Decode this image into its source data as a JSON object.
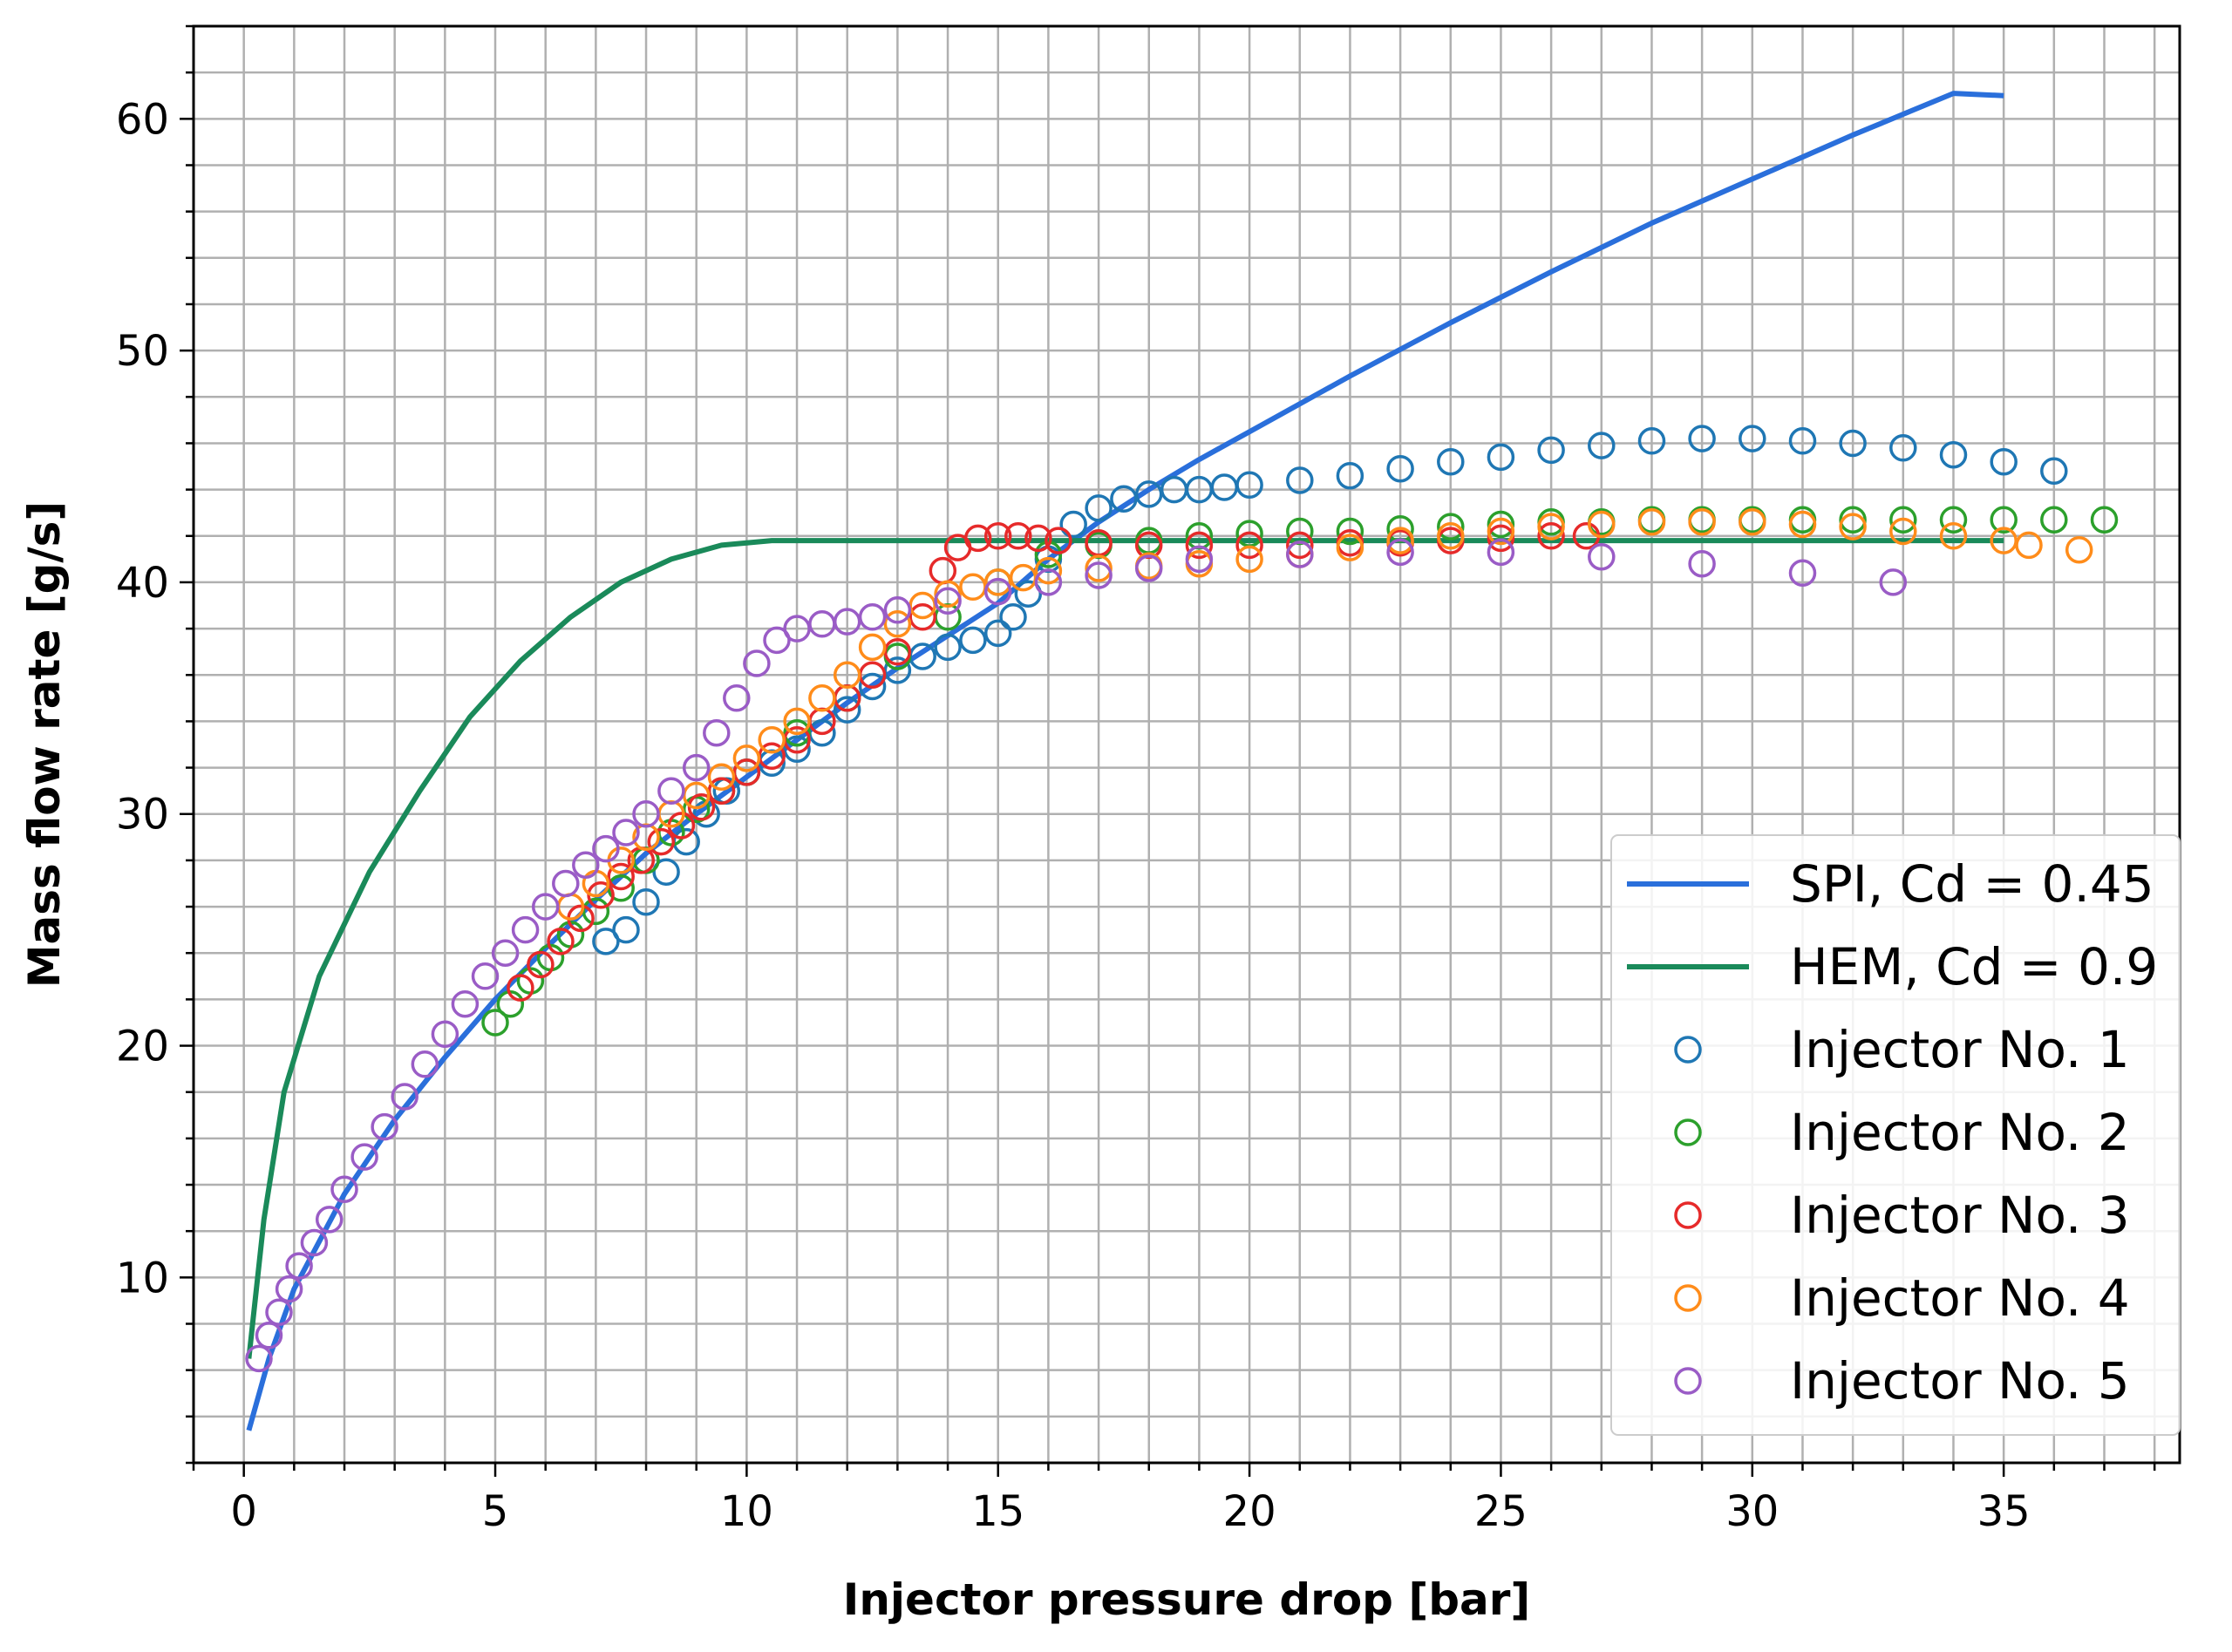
{
  "chart_data": {
    "type": "scatter",
    "title": "",
    "xlabel": "Injector pressure drop [bar]",
    "ylabel": "Mass flow rate [g/s]",
    "xlim": [
      -1.0,
      38.5
    ],
    "ylim": [
      2.0,
      64.0
    ],
    "xticks": [
      0,
      5,
      10,
      15,
      20,
      25,
      30,
      35
    ],
    "yticks": [
      10,
      20,
      30,
      40,
      50,
      60
    ],
    "grid": true,
    "legend_position": "lower-right",
    "series": [
      {
        "name": "SPI, Cd = 0.45",
        "kind": "line",
        "color": "#2a6fdb",
        "x": [
          0.1,
          0.5,
          1,
          2,
          3,
          4,
          5,
          6,
          7,
          8,
          9,
          10,
          11,
          12,
          13,
          14,
          15,
          16,
          17,
          18,
          19,
          20,
          22,
          24,
          26,
          28,
          30,
          32,
          34,
          35
        ],
        "y": [
          3.4,
          6.5,
          9.5,
          13.6,
          16.8,
          19.5,
          22.0,
          24.2,
          26.3,
          28.3,
          30.0,
          31.6,
          33.2,
          34.8,
          36.3,
          37.7,
          39.1,
          41.0,
          42.6,
          44.0,
          45.3,
          46.5,
          48.9,
          51.2,
          53.4,
          55.5,
          57.4,
          59.3,
          61.1,
          61.0
        ]
      },
      {
        "name": "HEM, Cd = 0.9",
        "kind": "line",
        "color": "#1a8a5a",
        "x": [
          0.1,
          0.4,
          0.8,
          1.5,
          2.5,
          3.5,
          4.5,
          5.5,
          6.5,
          7.5,
          8.5,
          9.5,
          10.5,
          11.5,
          13,
          15,
          20,
          25,
          30,
          35
        ],
        "y": [
          6.5,
          12.5,
          18.0,
          23.0,
          27.5,
          31.0,
          34.2,
          36.6,
          38.5,
          40.0,
          41.0,
          41.6,
          41.8,
          41.8,
          41.8,
          41.8,
          41.8,
          41.8,
          41.8,
          41.8
        ]
      },
      {
        "name": "Injector No. 1",
        "kind": "scatter",
        "color": "#1f77b4",
        "x": [
          7.2,
          7.6,
          8.0,
          8.4,
          8.8,
          9.2,
          9.6,
          10.0,
          10.5,
          11.0,
          11.5,
          12.0,
          12.5,
          13.0,
          13.5,
          14.0,
          14.5,
          15.0,
          15.3,
          15.6,
          16.0,
          16.5,
          17.0,
          17.5,
          18.0,
          18.5,
          19.0,
          19.5,
          20.0,
          21.0,
          22.0,
          23.0,
          24.0,
          25.0,
          26.0,
          27.0,
          28.0,
          29.0,
          30.0,
          31.0,
          32.0,
          33.0,
          34.0,
          35.0,
          36.0
        ],
        "y": [
          24.5,
          25.0,
          26.2,
          27.5,
          28.8,
          30.0,
          31.0,
          31.8,
          32.2,
          32.8,
          33.5,
          34.5,
          35.5,
          36.2,
          36.8,
          37.2,
          37.5,
          37.8,
          38.5,
          39.5,
          41.0,
          42.5,
          43.2,
          43.6,
          43.8,
          44.0,
          44.0,
          44.1,
          44.2,
          44.4,
          44.6,
          44.9,
          45.2,
          45.4,
          45.7,
          45.9,
          46.1,
          46.2,
          46.2,
          46.1,
          46.0,
          45.8,
          45.5,
          45.2,
          44.8
        ]
      },
      {
        "name": "Injector No. 2",
        "kind": "scatter",
        "color": "#2ca02c",
        "x": [
          5.0,
          5.3,
          5.7,
          6.1,
          6.5,
          7.0,
          7.5,
          8.0,
          8.5,
          9.0,
          9.5,
          10.0,
          11.0,
          12.0,
          13.0,
          14.0,
          15.0,
          16.0,
          17.0,
          18.0,
          19.0,
          20.0,
          21.0,
          22.0,
          23.0,
          24.0,
          25.0,
          26.0,
          27.0,
          28.0,
          29.0,
          30.0,
          31.0,
          32.0,
          33.0,
          34.0,
          35.0,
          36.0,
          37.0
        ],
        "y": [
          21.0,
          21.8,
          22.8,
          23.8,
          24.8,
          25.8,
          26.8,
          28.0,
          29.2,
          30.2,
          31.0,
          31.8,
          33.5,
          35.0,
          36.8,
          38.5,
          40.0,
          41.2,
          41.6,
          41.8,
          42.0,
          42.1,
          42.2,
          42.2,
          42.3,
          42.4,
          42.5,
          42.6,
          42.6,
          42.7,
          42.7,
          42.7,
          42.7,
          42.7,
          42.7,
          42.7,
          42.7,
          42.7,
          42.7
        ]
      },
      {
        "name": "Injector No. 3",
        "kind": "scatter",
        "color": "#e62a2a",
        "x": [
          5.5,
          5.9,
          6.3,
          6.7,
          7.1,
          7.5,
          7.9,
          8.3,
          8.7,
          9.1,
          9.5,
          10.0,
          10.5,
          11.0,
          11.5,
          12.0,
          12.5,
          13.0,
          13.5,
          13.9,
          14.2,
          14.6,
          15.0,
          15.4,
          15.8,
          16.2,
          17.0,
          18.0,
          19.0,
          20.0,
          21.0,
          22.0,
          23.0,
          24.0,
          25.0,
          26.0,
          26.7
        ],
        "y": [
          22.5,
          23.5,
          24.5,
          25.5,
          26.5,
          27.3,
          28.0,
          28.8,
          29.5,
          30.3,
          31.0,
          31.8,
          32.5,
          33.2,
          34.0,
          35.0,
          36.0,
          37.0,
          38.5,
          40.5,
          41.5,
          41.9,
          42.0,
          42.0,
          41.9,
          41.8,
          41.7,
          41.6,
          41.6,
          41.6,
          41.6,
          41.7,
          41.7,
          41.8,
          41.9,
          42.0,
          42.0
        ]
      },
      {
        "name": "Injector No. 4",
        "kind": "scatter",
        "color": "#ff8c1a",
        "x": [
          6.5,
          7.0,
          7.5,
          8.0,
          8.5,
          9.0,
          9.5,
          10.0,
          10.5,
          11.0,
          11.5,
          12.0,
          12.5,
          13.0,
          13.5,
          14.0,
          14.5,
          15.0,
          15.5,
          16.0,
          17.0,
          18.0,
          19.0,
          20.0,
          21.0,
          22.0,
          23.0,
          24.0,
          25.0,
          26.0,
          27.0,
          28.0,
          29.0,
          30.0,
          31.0,
          32.0,
          33.0,
          34.0,
          35.0,
          35.5,
          36.5
        ],
        "y": [
          26.0,
          27.0,
          28.0,
          29.0,
          30.0,
          30.8,
          31.6,
          32.4,
          33.2,
          34.0,
          35.0,
          36.0,
          37.2,
          38.2,
          39.0,
          39.5,
          39.8,
          40.0,
          40.2,
          40.5,
          40.6,
          40.7,
          40.8,
          41.0,
          41.2,
          41.5,
          41.8,
          42.0,
          42.2,
          42.4,
          42.5,
          42.6,
          42.6,
          42.6,
          42.5,
          42.4,
          42.2,
          42.0,
          41.8,
          41.6,
          41.4
        ]
      },
      {
        "name": "Injector No. 5",
        "kind": "scatter",
        "color": "#9a5cc6",
        "x": [
          0.3,
          0.5,
          0.7,
          0.9,
          1.1,
          1.4,
          1.7,
          2.0,
          2.4,
          2.8,
          3.2,
          3.6,
          4.0,
          4.4,
          4.8,
          5.2,
          5.6,
          6.0,
          6.4,
          6.8,
          7.2,
          7.6,
          8.0,
          8.5,
          9.0,
          9.4,
          9.8,
          10.2,
          10.6,
          11.0,
          11.5,
          12.0,
          12.5,
          13.0,
          14.0,
          15.0,
          16.0,
          17.0,
          18.0,
          19.0,
          21.0,
          23.0,
          25.0,
          27.0,
          29.0,
          31.0,
          32.8
        ],
        "y": [
          6.5,
          7.5,
          8.5,
          9.5,
          10.5,
          11.5,
          12.5,
          13.8,
          15.2,
          16.5,
          17.8,
          19.2,
          20.5,
          21.8,
          23.0,
          24.0,
          25.0,
          26.0,
          27.0,
          27.8,
          28.5,
          29.2,
          30.0,
          31.0,
          32.0,
          33.5,
          35.0,
          36.5,
          37.5,
          38.0,
          38.2,
          38.3,
          38.5,
          38.8,
          39.2,
          39.6,
          40.0,
          40.3,
          40.6,
          41.0,
          41.2,
          41.3,
          41.3,
          41.1,
          40.8,
          40.4,
          40.0
        ]
      }
    ]
  }
}
